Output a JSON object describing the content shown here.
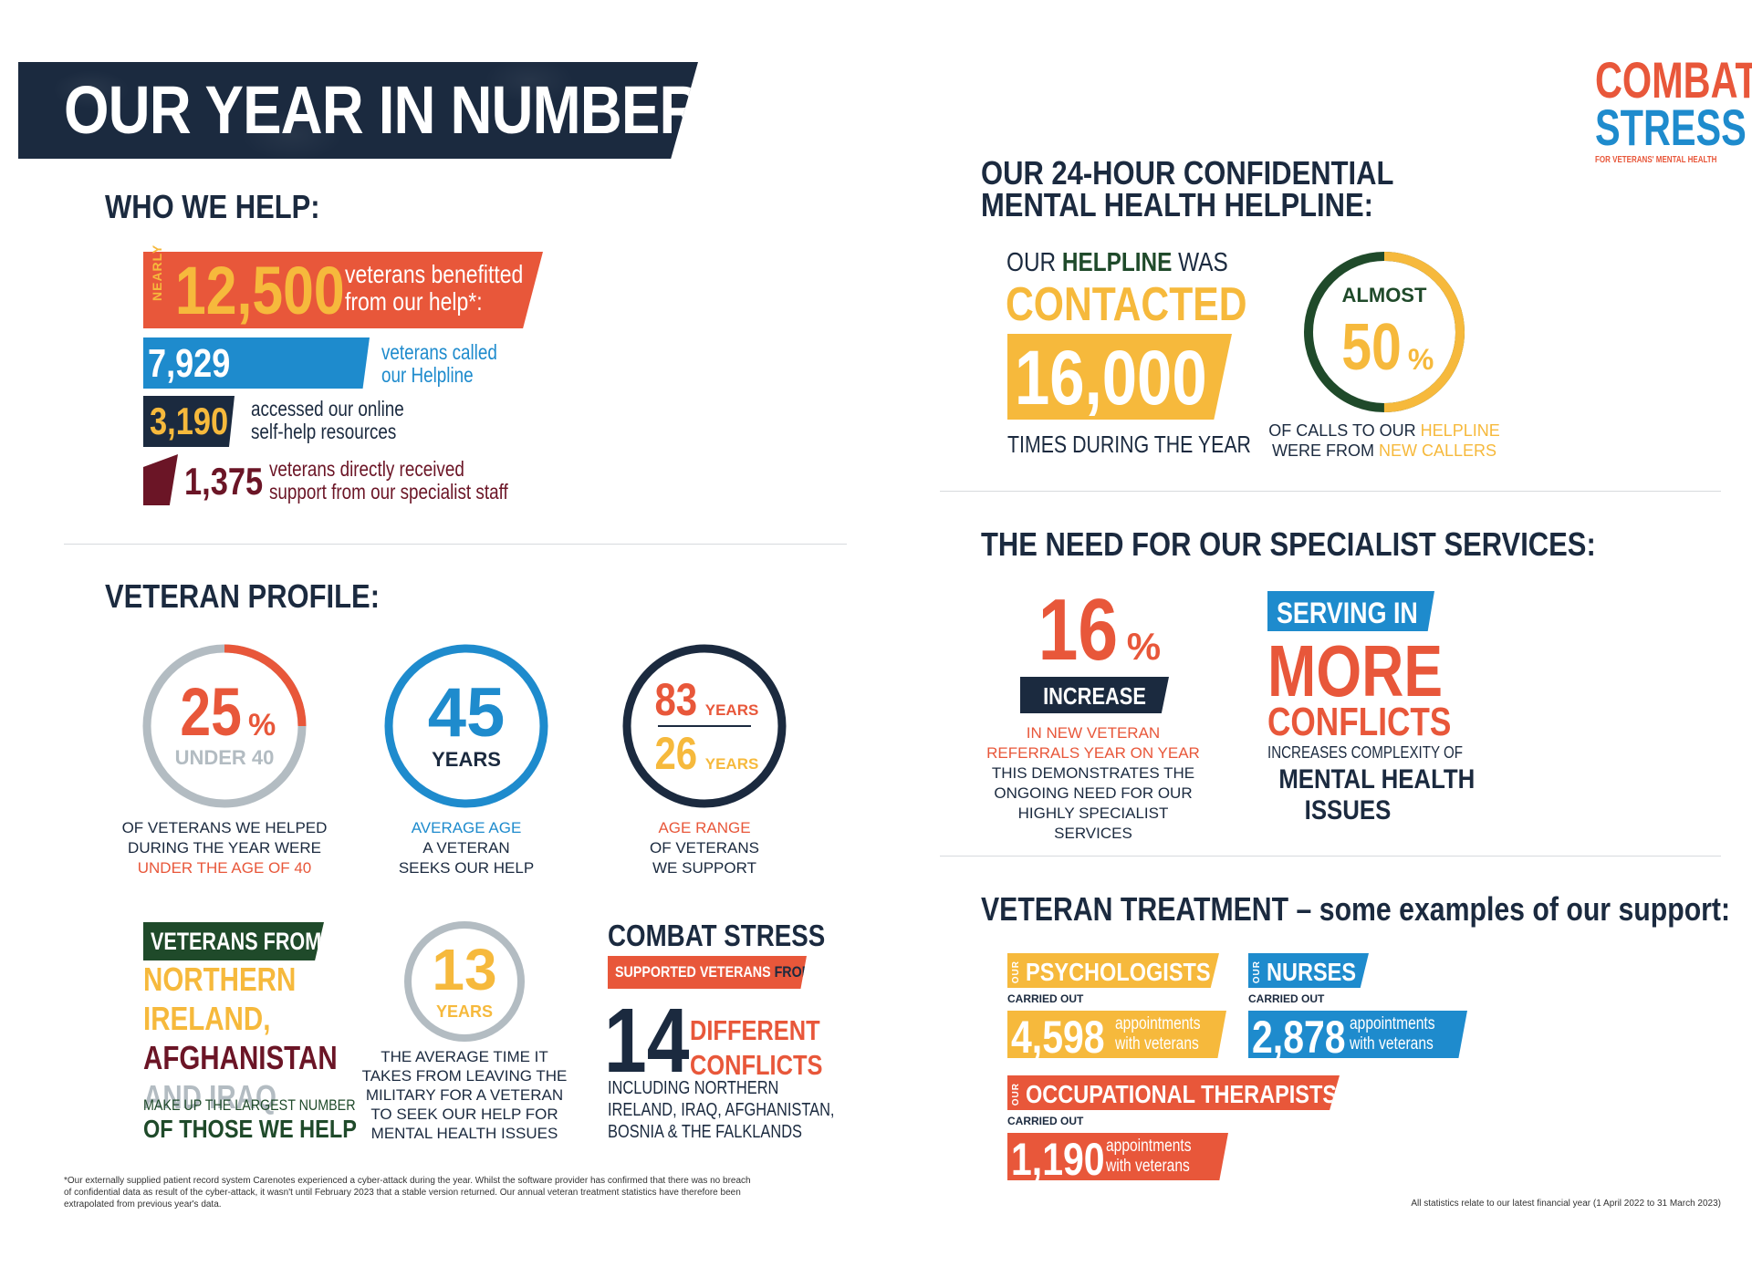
{
  "title": "OUR YEAR IN NUMBERS",
  "logo": {
    "line1": "COMBAT",
    "line2": "STRESS",
    "tagline": "FOR VETERANS' MENTAL HEALTH"
  },
  "who_we_help": {
    "heading": "WHO WE HELP:",
    "nearly": "NEARLY",
    "total": "12,500",
    "total_text1": "veterans benefitted",
    "total_text2": "from our help*:",
    "called": "7,929",
    "called_text1": "veterans called",
    "called_text2": "our Helpline",
    "online": "3,190",
    "online_text1": "accessed our online",
    "online_text2": "self-help resources",
    "direct": "1,375",
    "direct_text1": "veterans directly received",
    "direct_text2": "support from our specialist staff"
  },
  "helpline": {
    "heading1": "OUR 24-HOUR CONFIDENTIAL",
    "heading2": "MENTAL HEALTH HELPLINE:",
    "our": "OUR",
    "helpline_word": "HELPLINE",
    "was": "WAS",
    "contacted": "CONTACTED",
    "number": "16,000",
    "times": "TIMES DURING THE YEAR",
    "almost": "ALMOST",
    "percent": "50",
    "percent_sign": "%",
    "calls1a": "OF CALLS TO OUR",
    "calls1b": "HELPLINE",
    "calls2a": "WERE FROM",
    "calls2b": "NEW CALLERS",
    "percent_value": 0.5
  },
  "profile": {
    "heading": "VETERAN PROFILE:",
    "under40_pct": "25",
    "under40_sign": "%",
    "under40_label": "UNDER 40",
    "under40_fraction": 0.25,
    "under40_cap1": "OF VETERANS WE HELPED",
    "under40_cap2": "DURING THE YEAR WERE",
    "under40_cap3": "UNDER THE AGE OF 40",
    "avg_age": "45",
    "avg_age_unit": "YEARS",
    "avg_cap1": "AVERAGE AGE",
    "avg_cap2": "A VETERAN",
    "avg_cap3": "SEEKS OUR HELP",
    "range_max": "83",
    "range_min": "26",
    "range_unit": "YEARS",
    "range_cap1": "AGE RANGE",
    "range_cap2": "OF VETERANS",
    "range_cap3": "WE SUPPORT",
    "from_tag": "VETERANS FROM",
    "from_l1": "NORTHERN",
    "from_l2": "IRELAND,",
    "from_l3": "AFGHANISTAN",
    "from_l4": "AND IRAQ",
    "from_l5": "MAKE UP THE LARGEST NUMBER",
    "from_l6": "OF THOSE WE HELP",
    "years_to_seek": "13",
    "years_unit": "YEARS",
    "seek_cap1": "THE AVERAGE TIME IT",
    "seek_cap2": "TAKES FROM LEAVING THE",
    "seek_cap3": "MILITARY FOR A VETERAN",
    "seek_cap4": "TO SEEK OUR HELP FOR",
    "seek_cap5": "MENTAL HEALTH ISSUES",
    "cs_title": "COMBAT STRESS",
    "cs_tag_a": "SUPPORTED VETERANS",
    "cs_tag_b": "FROM",
    "conflicts_num": "14",
    "conflicts_l1": "DIFFERENT",
    "conflicts_l2": "CONFLICTS",
    "incl1": "INCLUDING NORTHERN",
    "incl2": "IRELAND, IRAQ, AFGHANISTAN,",
    "incl3": "BOSNIA & THE FALKLANDS"
  },
  "need": {
    "heading": "THE NEED FOR OUR SPECIALIST SERVICES:",
    "pct": "16",
    "pct_sign": "%",
    "increase": "INCREASE",
    "cap1": "IN NEW VETERAN",
    "cap2": "REFERRALS YEAR ON YEAR",
    "cap3": "THIS DEMONSTRATES THE",
    "cap4": "ONGOING NEED FOR OUR",
    "cap5": "HIGHLY SPECIALIST SERVICES",
    "serving": "SERVING IN",
    "more": "MORE",
    "conflicts": "CONFLICTS",
    "complex": "INCREASES COMPLEXITY OF",
    "mh1": "MENTAL HEALTH",
    "mh2": "ISSUES"
  },
  "treatment": {
    "heading_bold": "VETERAN TREATMENT",
    "heading_rest": "– some examples of our support:",
    "our": "OUR",
    "carried_out": "CARRIED OUT",
    "appt1": "appointments",
    "appt2": "with veterans",
    "psych_label": "PSYCHOLOGISTS",
    "psych_num": "4,598",
    "nurse_label": "NURSES",
    "nurse_num": "2,878",
    "ot_label": "OCCUPATIONAL THERAPISTS",
    "ot_num": "1,190"
  },
  "footnote1": "*Our externally supplied patient record system Carenotes experienced a cyber-attack during the year. Whilst the software provider has confirmed that there was no breach",
  "footnote2": "of confidential data as result of the cyber-attack, it wasn't until February 2023 that a stable version returned. Our annual veteran treatment statistics have therefore been",
  "footnote3": "extrapolated from previous year's data.",
  "stats_note": "All statistics relate to our latest financial year (1 April 2022 to 31 March 2023)",
  "colors": {
    "navy": "#1b2a3f",
    "orange": "#e8573a",
    "yellow": "#f6b93c",
    "blue": "#1e8bcd",
    "maroon": "#6b1526",
    "green": "#1f4a2a",
    "grey": "#b3bcc2"
  }
}
